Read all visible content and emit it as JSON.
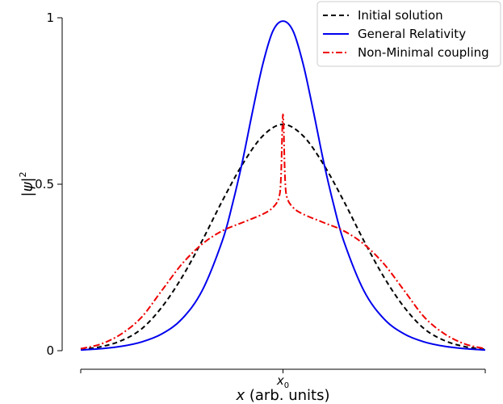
{
  "chart_data": {
    "type": "line",
    "xlabel_var": "x",
    "xlabel_rest": " (arb. units)",
    "ylabel_base": "|ψ|",
    "ylabel_sup": "2",
    "x_ticks": [
      {
        "value": 0,
        "base": "x",
        "sub": "0"
      }
    ],
    "y_ticks": [
      {
        "value": 0,
        "label": "0"
      },
      {
        "value": 0.5,
        "label": "0.5"
      },
      {
        "value": 1,
        "label": "1"
      }
    ],
    "xlim": [
      -1,
      1
    ],
    "ylim": [
      0,
      1
    ],
    "grid": false,
    "legend_position": "top-right",
    "series": [
      {
        "name": "Initial solution",
        "color": "#000000",
        "style": "dashed",
        "x": [
          -1.0,
          -0.9,
          -0.8,
          -0.7,
          -0.6,
          -0.5,
          -0.4,
          -0.3,
          -0.2,
          -0.1,
          0.0,
          0.1,
          0.2,
          0.3,
          0.4,
          0.5,
          0.6,
          0.7,
          0.8,
          0.9,
          1.0
        ],
        "y": [
          0.004,
          0.012,
          0.03,
          0.065,
          0.13,
          0.22,
          0.33,
          0.45,
          0.56,
          0.645,
          0.68,
          0.645,
          0.56,
          0.45,
          0.33,
          0.22,
          0.13,
          0.065,
          0.03,
          0.012,
          0.004
        ]
      },
      {
        "name": "General Relativity",
        "color": "#0000ee",
        "style": "solid",
        "x": [
          -1.0,
          -0.9,
          -0.8,
          -0.7,
          -0.6,
          -0.5,
          -0.4,
          -0.3,
          -0.25,
          -0.2,
          -0.15,
          -0.1,
          -0.05,
          0.0,
          0.05,
          0.1,
          0.15,
          0.2,
          0.25,
          0.3,
          0.4,
          0.5,
          0.6,
          0.7,
          0.8,
          0.9,
          1.0
        ],
        "y": [
          0.002,
          0.006,
          0.013,
          0.026,
          0.05,
          0.095,
          0.18,
          0.33,
          0.44,
          0.57,
          0.72,
          0.86,
          0.96,
          0.99,
          0.96,
          0.86,
          0.72,
          0.57,
          0.44,
          0.33,
          0.18,
          0.095,
          0.05,
          0.026,
          0.013,
          0.006,
          0.002
        ]
      },
      {
        "name": "Non-Minimal coupling",
        "color": "#ee0000",
        "style": "dashdot",
        "x": [
          -1.0,
          -0.9,
          -0.8,
          -0.7,
          -0.6,
          -0.5,
          -0.4,
          -0.3,
          -0.2,
          -0.1,
          -0.05,
          -0.02,
          -0.01,
          0.0,
          0.01,
          0.02,
          0.05,
          0.1,
          0.2,
          0.3,
          0.4,
          0.5,
          0.6,
          0.7,
          0.8,
          0.9,
          1.0
        ],
        "y": [
          0.006,
          0.02,
          0.05,
          0.1,
          0.18,
          0.26,
          0.32,
          0.36,
          0.385,
          0.41,
          0.43,
          0.46,
          0.52,
          0.71,
          0.52,
          0.46,
          0.43,
          0.41,
          0.385,
          0.36,
          0.32,
          0.26,
          0.18,
          0.1,
          0.05,
          0.02,
          0.006
        ]
      }
    ]
  }
}
